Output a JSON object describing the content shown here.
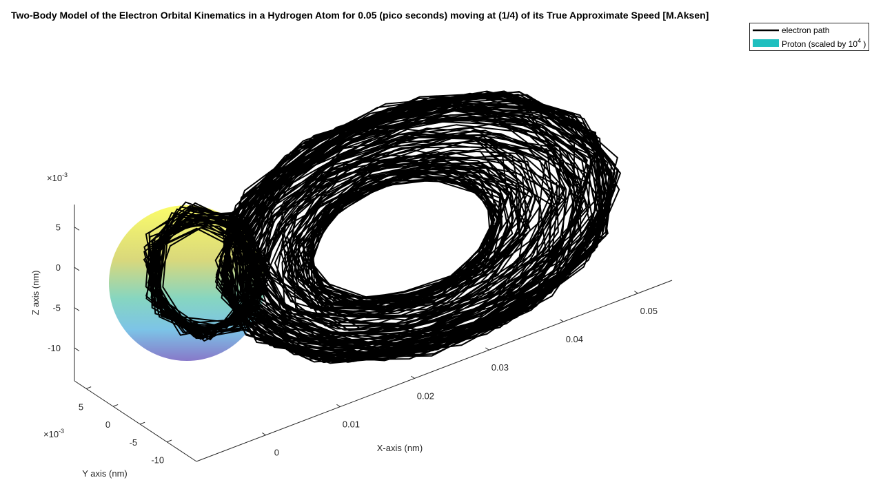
{
  "chart_data": {
    "type": "line3d",
    "title": "Two-Body Model of the Electron Orbital Kinematics in a Hydrogen Atom for 0.05 (pico seconds) moving at (1/4) of its True Approximate Speed [M.Aksen]",
    "xlabel": "X-axis (nm)",
    "ylabel": "Y axis (nm)",
    "zlabel": "Z axis (nm)",
    "xlim": [
      -0.0093,
      0.0546
    ],
    "xticks": [
      0,
      0.01,
      0.02,
      0.03,
      0.04,
      0.05
    ],
    "ylim": [
      -15.5,
      7.2
    ],
    "yticks": [
      -10,
      -5,
      0,
      5
    ],
    "y_multiplier": {
      "base": "×10",
      "exponent": "-3"
    },
    "zlim": [
      -14.1,
      7.8
    ],
    "zticks": [
      -10,
      -5,
      0,
      5
    ],
    "z_multiplier": {
      "base": "×10",
      "exponent": "-3"
    },
    "series": [
      {
        "name": "electron path",
        "color": "#000000"
      },
      {
        "name": {
          "text": "Proton (scaled by 10",
          "exponent": "4",
          "suffix": " )"
        },
        "color": "#1fbfbf"
      }
    ]
  }
}
